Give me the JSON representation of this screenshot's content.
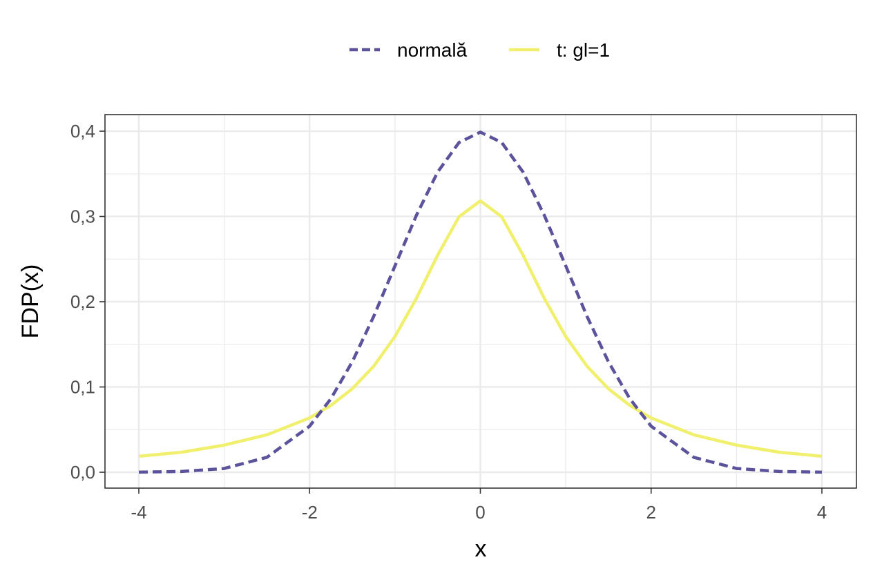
{
  "chart_data": {
    "type": "line",
    "xlabel": "x",
    "ylabel": "FDP(x)",
    "xlim": [
      -4,
      4
    ],
    "ylim": [
      -0.018,
      0.42
    ],
    "x_ticks": [
      -4,
      -2,
      0,
      2,
      4
    ],
    "x_tick_labels": [
      "-4",
      "-2",
      "0",
      "2",
      "4"
    ],
    "y_ticks": [
      0.0,
      0.1,
      0.2,
      0.3,
      0.4
    ],
    "y_tick_labels": [
      "0,0",
      "0,1",
      "0,2",
      "0,3",
      "0,4"
    ],
    "grid": true,
    "legend_position": "top",
    "x": [
      -4,
      -3.5,
      -3,
      -2.5,
      -2,
      -1.75,
      -1.5,
      -1.25,
      -1,
      -0.75,
      -0.5,
      -0.25,
      0,
      0.25,
      0.5,
      0.75,
      1,
      1.25,
      1.5,
      1.75,
      2,
      2.5,
      3,
      3.5,
      4
    ],
    "series": [
      {
        "name": "normală",
        "color": "#5b539c",
        "dash": "dashed",
        "values": [
          0.0001,
          0.0009,
          0.0044,
          0.0175,
          0.054,
          0.0863,
          0.1295,
          0.1826,
          0.242,
          0.3011,
          0.3521,
          0.3867,
          0.3989,
          0.3867,
          0.3521,
          0.3011,
          0.242,
          0.1826,
          0.1295,
          0.0863,
          0.054,
          0.0175,
          0.0044,
          0.0009,
          0.0001
        ]
      },
      {
        "name": "t: gl=1",
        "color": "#f0f06e",
        "dash": "solid",
        "values": [
          0.0187,
          0.0235,
          0.0318,
          0.0439,
          0.0637,
          0.0784,
          0.0979,
          0.1242,
          0.1592,
          0.2037,
          0.2546,
          0.2996,
          0.3183,
          0.2996,
          0.2546,
          0.2037,
          0.1592,
          0.1242,
          0.0979,
          0.0784,
          0.0637,
          0.0439,
          0.0318,
          0.0235,
          0.0187
        ]
      }
    ]
  },
  "colors": {
    "grid": "#ebebeb",
    "panel_border": "#333333",
    "tick_text": "#4d4d4d"
  }
}
